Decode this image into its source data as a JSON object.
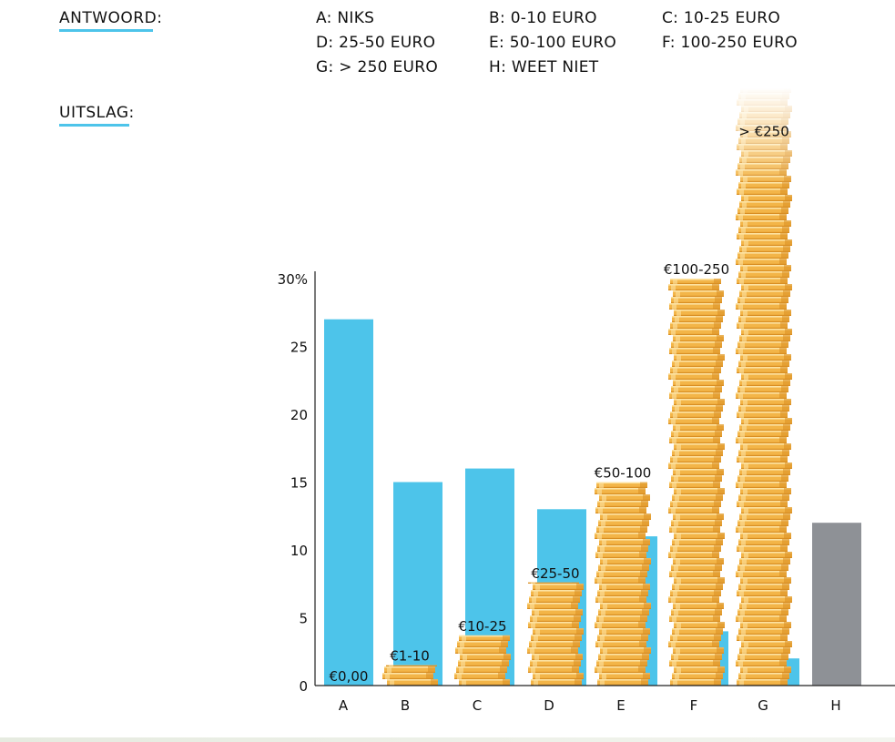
{
  "headings": {
    "answer": "ANTWOORD:",
    "result": "UITSLAG:"
  },
  "legend": [
    "A: NIKS",
    "B: 0-10 EURO",
    "C: 10-25 EURO",
    "D: 25-50 EURO",
    "E: 50-100 EURO",
    "F: 100-250 EURO",
    "G: > 250 EURO",
    "H: WEET NIET"
  ],
  "colors": {
    "bar": "#4dc4ea",
    "unknown": "#8e9196",
    "coin": "#f3b548",
    "coin_dark": "#d98e22",
    "coin_light": "#fde3a2",
    "underline": "#4dc4ea"
  },
  "chart_data": {
    "type": "bar",
    "categories": [
      "A",
      "B",
      "C",
      "D",
      "E",
      "F",
      "G",
      "H"
    ],
    "values": [
      27,
      15,
      16,
      13,
      11,
      4,
      2,
      12
    ],
    "ylim": [
      0,
      30
    ],
    "y_ticks": [
      {
        "value": 0,
        "label": "0"
      },
      {
        "value": 5,
        "label": "5"
      },
      {
        "value": 10,
        "label": "10"
      },
      {
        "value": 15,
        "label": "15"
      },
      {
        "value": 20,
        "label": "20"
      },
      {
        "value": 25,
        "label": "25"
      },
      {
        "value": 30,
        "label": "30%"
      }
    ],
    "grid": false,
    "coin_stacks": [
      {
        "label": "€0,00",
        "value": 0
      },
      {
        "label": "€1-10",
        "value": 1.5
      },
      {
        "label": "€10-25",
        "value": 3.7
      },
      {
        "label": "€25-50",
        "value": 7.6
      },
      {
        "label": "€50-100",
        "value": 15
      },
      {
        "label": "€100-250",
        "value": 30
      },
      {
        "label": "> €250",
        "value": 44
      }
    ]
  }
}
